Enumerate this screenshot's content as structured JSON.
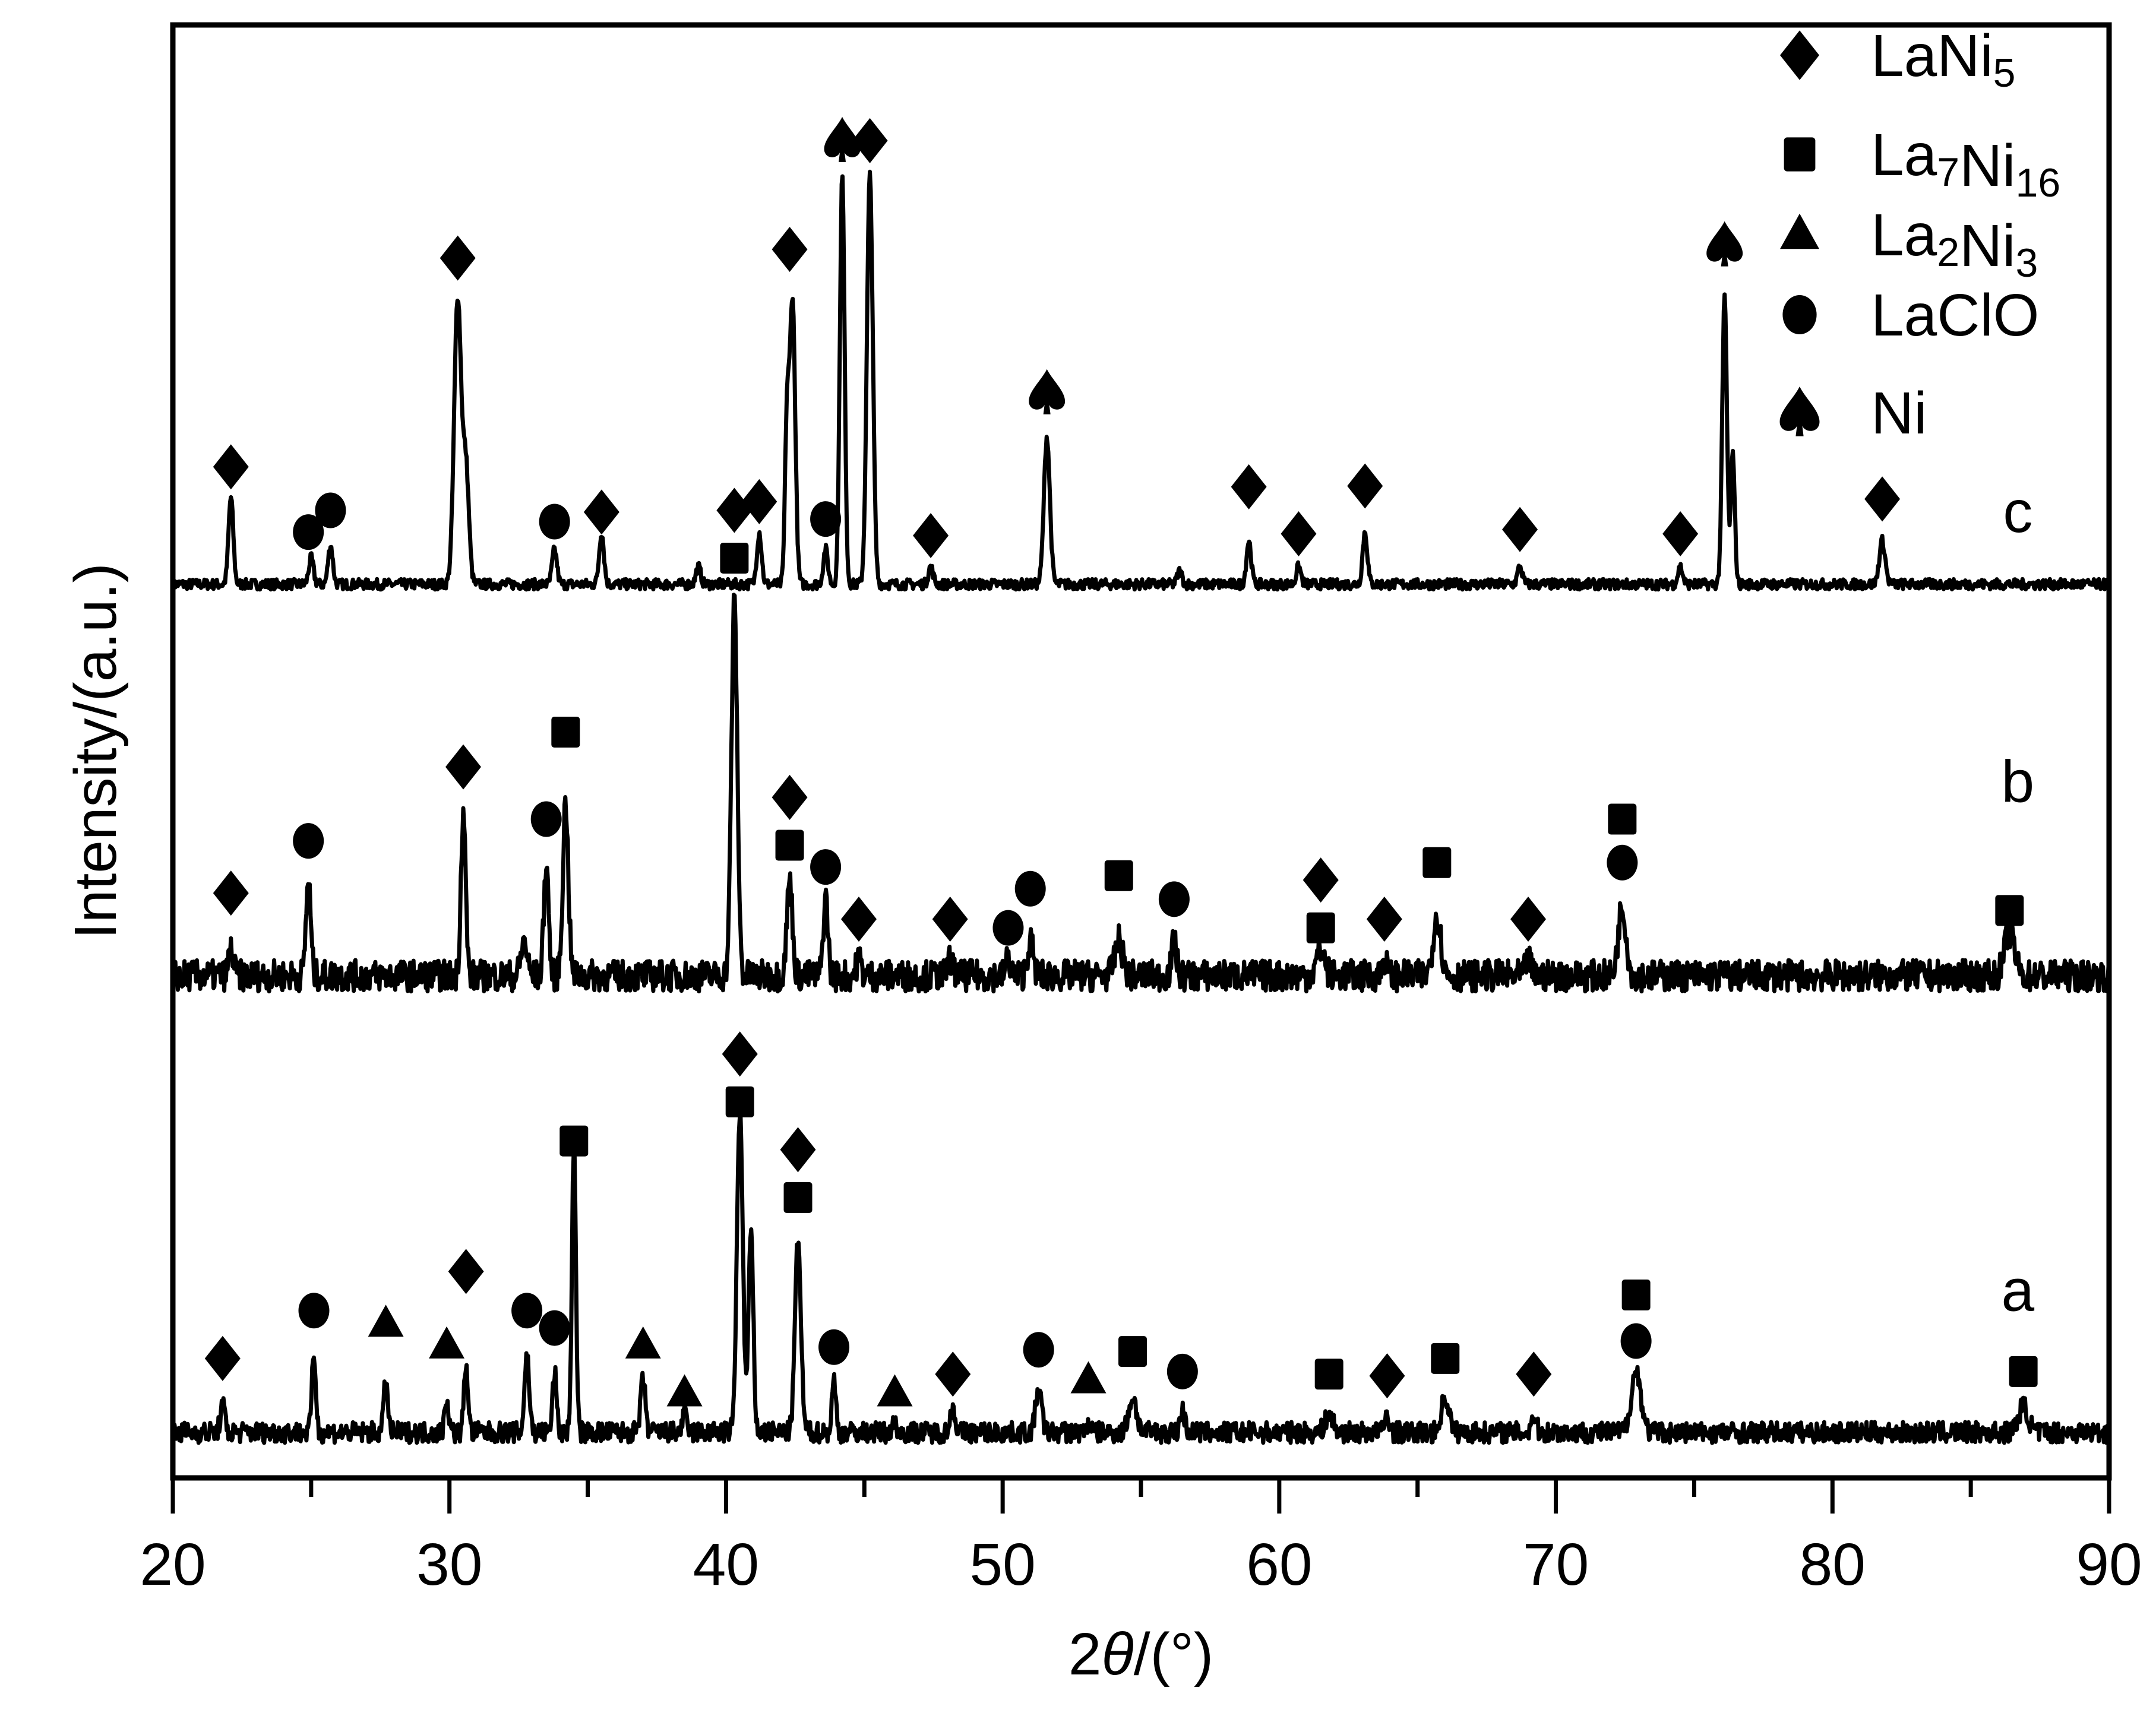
{
  "chart_data": {
    "type": "line",
    "title": "",
    "xlabel": "2θ/(°)",
    "xlabel_parts": {
      "prefix": "2",
      "theta": "θ",
      "suffix": "/(°)"
    },
    "ylabel": "Intensity/(a.u.)",
    "xlim": [
      20,
      90
    ],
    "x_ticks": [
      20,
      30,
      40,
      50,
      60,
      70,
      80,
      90
    ],
    "x_minor_ticks": [
      25,
      35,
      45,
      55,
      65,
      75,
      85
    ],
    "y_ticks": [],
    "grid": false,
    "legend_position": "top-right",
    "legend": [
      {
        "marker": "diamond",
        "label": "LaNi5",
        "base": "LaNi",
        "sub1": "",
        "sub2": "5",
        "mid": ""
      },
      {
        "marker": "square",
        "label": "La7Ni16",
        "base": "La",
        "sub1": "7",
        "mid": "Ni",
        "sub2": "16"
      },
      {
        "marker": "triangle",
        "label": "La2Ni3",
        "base": "La",
        "sub1": "2",
        "mid": "Ni",
        "sub2": "3"
      },
      {
        "marker": "circle",
        "label": "LaClO",
        "base": "LaClO",
        "sub1": "",
        "mid": "",
        "sub2": ""
      },
      {
        "marker": "spade",
        "label": "Ni",
        "base": "Ni",
        "sub1": "",
        "mid": "",
        "sub2": ""
      }
    ],
    "series": [
      {
        "name": "c",
        "baseline": 1.0,
        "noise": 0.006,
        "peaks": [
          {
            "x": 22.1,
            "h": 0.1,
            "w": 0.12
          },
          {
            "x": 25.0,
            "h": 0.03,
            "w": 0.12
          },
          {
            "x": 25.7,
            "h": 0.045,
            "w": 0.12
          },
          {
            "x": 30.3,
            "h": 0.33,
            "w": 0.18
          },
          {
            "x": 30.6,
            "h": 0.13,
            "w": 0.15
          },
          {
            "x": 33.8,
            "h": 0.04,
            "w": 0.12
          },
          {
            "x": 35.5,
            "h": 0.06,
            "w": 0.12
          },
          {
            "x": 39.0,
            "h": 0.02,
            "w": 0.12
          },
          {
            "x": 41.2,
            "h": 0.06,
            "w": 0.12
          },
          {
            "x": 42.2,
            "h": 0.18,
            "w": 0.1
          },
          {
            "x": 42.4,
            "h": 0.33,
            "w": 0.14
          },
          {
            "x": 43.6,
            "h": 0.04,
            "w": 0.12
          },
          {
            "x": 44.2,
            "h": 0.47,
            "w": 0.12
          },
          {
            "x": 45.2,
            "h": 0.47,
            "w": 0.15
          },
          {
            "x": 47.4,
            "h": 0.02,
            "w": 0.12
          },
          {
            "x": 51.6,
            "h": 0.17,
            "w": 0.15
          },
          {
            "x": 56.4,
            "h": 0.015,
            "w": 0.12
          },
          {
            "x": 58.9,
            "h": 0.05,
            "w": 0.12
          },
          {
            "x": 60.7,
            "h": 0.02,
            "w": 0.12
          },
          {
            "x": 63.1,
            "h": 0.06,
            "w": 0.12
          },
          {
            "x": 68.7,
            "h": 0.02,
            "w": 0.12
          },
          {
            "x": 74.5,
            "h": 0.02,
            "w": 0.12
          },
          {
            "x": 76.1,
            "h": 0.33,
            "w": 0.12
          },
          {
            "x": 76.4,
            "h": 0.15,
            "w": 0.1
          },
          {
            "x": 81.8,
            "h": 0.05,
            "w": 0.15
          }
        ],
        "markers": [
          {
            "x": 22.1,
            "type": "diamond",
            "y": 0.135
          },
          {
            "x": 24.9,
            "type": "circle",
            "y": 0.06
          },
          {
            "x": 25.7,
            "type": "circle",
            "y": 0.085
          },
          {
            "x": 30.3,
            "type": "diamond",
            "y": 0.375
          },
          {
            "x": 33.8,
            "type": "circle",
            "y": 0.072
          },
          {
            "x": 35.5,
            "type": "diamond",
            "y": 0.083
          },
          {
            "x": 41.2,
            "type": "diamond",
            "y": 0.095
          },
          {
            "x": 42.3,
            "type": "diamond",
            "y": 0.385
          },
          {
            "x": 43.6,
            "type": "circle",
            "y": 0.075
          },
          {
            "x": 44.2,
            "type": "spade",
            "y": 0.51
          },
          {
            "x": 45.2,
            "type": "diamond",
            "y": 0.51
          },
          {
            "x": 47.4,
            "type": "diamond",
            "y": 0.056
          },
          {
            "x": 51.6,
            "type": "spade",
            "y": 0.22
          },
          {
            "x": 58.9,
            "type": "diamond",
            "y": 0.112
          },
          {
            "x": 60.7,
            "type": "diamond",
            "y": 0.058
          },
          {
            "x": 63.1,
            "type": "diamond",
            "y": 0.113
          },
          {
            "x": 68.7,
            "type": "diamond",
            "y": 0.063
          },
          {
            "x": 74.5,
            "type": "diamond",
            "y": 0.058
          },
          {
            "x": 76.1,
            "type": "spade",
            "y": 0.39
          },
          {
            "x": 81.8,
            "type": "diamond",
            "y": 0.098
          }
        ],
        "label_x": 86.7,
        "label_y": 0.06
      },
      {
        "name": "b",
        "baseline": 0.55,
        "noise": 0.018,
        "peaks": [
          {
            "x": 22.1,
            "h": 0.03,
            "w": 0.12
          },
          {
            "x": 24.9,
            "h": 0.11,
            "w": 0.12
          },
          {
            "x": 30.5,
            "h": 0.19,
            "w": 0.12
          },
          {
            "x": 32.7,
            "h": 0.04,
            "w": 0.15
          },
          {
            "x": 33.5,
            "h": 0.13,
            "w": 0.12
          },
          {
            "x": 34.2,
            "h": 0.2,
            "w": 0.14
          },
          {
            "x": 40.3,
            "h": 0.43,
            "w": 0.15
          },
          {
            "x": 42.3,
            "h": 0.11,
            "w": 0.14
          },
          {
            "x": 43.6,
            "h": 0.09,
            "w": 0.12
          },
          {
            "x": 44.8,
            "h": 0.02,
            "w": 0.12
          },
          {
            "x": 48.1,
            "h": 0.02,
            "w": 0.12
          },
          {
            "x": 50.2,
            "h": 0.02,
            "w": 0.12
          },
          {
            "x": 51.0,
            "h": 0.04,
            "w": 0.15
          },
          {
            "x": 54.2,
            "h": 0.04,
            "w": 0.2
          },
          {
            "x": 56.2,
            "h": 0.04,
            "w": 0.12
          },
          {
            "x": 61.5,
            "h": 0.03,
            "w": 0.2
          },
          {
            "x": 63.8,
            "h": 0.02,
            "w": 0.12
          },
          {
            "x": 65.7,
            "h": 0.07,
            "w": 0.2
          },
          {
            "x": 69.0,
            "h": 0.02,
            "w": 0.12
          },
          {
            "x": 72.4,
            "h": 0.08,
            "w": 0.2
          },
          {
            "x": 86.4,
            "h": 0.05,
            "w": 0.25
          }
        ],
        "markers": [
          {
            "x": 22.1,
            "type": "diamond",
            "y": 0.095
          },
          {
            "x": 24.9,
            "type": "circle",
            "y": 0.155
          },
          {
            "x": 30.5,
            "type": "diamond",
            "y": 0.24
          },
          {
            "x": 33.5,
            "type": "circle",
            "y": 0.18
          },
          {
            "x": 34.2,
            "type": "square",
            "y": 0.28
          },
          {
            "x": 40.3,
            "type": "square",
            "y": 0.48
          },
          {
            "x": 40.3,
            "type": "diamond",
            "y": 0.535
          },
          {
            "x": 42.3,
            "type": "square",
            "y": 0.15
          },
          {
            "x": 42.3,
            "type": "diamond",
            "y": 0.205
          },
          {
            "x": 43.6,
            "type": "circle",
            "y": 0.125
          },
          {
            "x": 44.8,
            "type": "diamond",
            "y": 0.065
          },
          {
            "x": 48.1,
            "type": "diamond",
            "y": 0.065
          },
          {
            "x": 50.2,
            "type": "circle",
            "y": 0.055
          },
          {
            "x": 51.0,
            "type": "circle",
            "y": 0.1
          },
          {
            "x": 54.2,
            "type": "square",
            "y": 0.115
          },
          {
            "x": 56.2,
            "type": "circle",
            "y": 0.088
          },
          {
            "x": 61.5,
            "type": "square",
            "y": 0.055
          },
          {
            "x": 61.5,
            "type": "diamond",
            "y": 0.11
          },
          {
            "x": 63.8,
            "type": "diamond",
            "y": 0.065
          },
          {
            "x": 65.7,
            "type": "square",
            "y": 0.13
          },
          {
            "x": 69.0,
            "type": "diamond",
            "y": 0.065
          },
          {
            "x": 72.4,
            "type": "circle",
            "y": 0.13
          },
          {
            "x": 72.4,
            "type": "square",
            "y": 0.18
          },
          {
            "x": 86.4,
            "type": "square",
            "y": 0.075
          }
        ],
        "label_x": 86.7,
        "label_y": 0.2
      },
      {
        "name": "a",
        "baseline": 0.025,
        "noise": 0.012,
        "peaks": [
          {
            "x": 21.8,
            "h": 0.03,
            "w": 0.12
          },
          {
            "x": 25.1,
            "h": 0.09,
            "w": 0.1
          },
          {
            "x": 27.7,
            "h": 0.06,
            "w": 0.1
          },
          {
            "x": 29.9,
            "h": 0.04,
            "w": 0.1
          },
          {
            "x": 30.6,
            "h": 0.08,
            "w": 0.1
          },
          {
            "x": 32.8,
            "h": 0.09,
            "w": 0.12
          },
          {
            "x": 33.8,
            "h": 0.07,
            "w": 0.1
          },
          {
            "x": 34.5,
            "h": 0.33,
            "w": 0.1
          },
          {
            "x": 37.0,
            "h": 0.06,
            "w": 0.12
          },
          {
            "x": 38.5,
            "h": 0.02,
            "w": 0.12
          },
          {
            "x": 40.5,
            "h": 0.37,
            "w": 0.15
          },
          {
            "x": 40.9,
            "h": 0.23,
            "w": 0.12
          },
          {
            "x": 42.6,
            "h": 0.22,
            "w": 0.15
          },
          {
            "x": 43.9,
            "h": 0.06,
            "w": 0.1
          },
          {
            "x": 46.1,
            "h": 0.01,
            "w": 0.12
          },
          {
            "x": 48.2,
            "h": 0.03,
            "w": 0.12
          },
          {
            "x": 51.3,
            "h": 0.05,
            "w": 0.15
          },
          {
            "x": 53.1,
            "h": 0.01,
            "w": 0.12
          },
          {
            "x": 54.7,
            "h": 0.04,
            "w": 0.2
          },
          {
            "x": 56.5,
            "h": 0.025,
            "w": 0.12
          },
          {
            "x": 61.8,
            "h": 0.02,
            "w": 0.2
          },
          {
            "x": 63.9,
            "h": 0.02,
            "w": 0.12
          },
          {
            "x": 66.0,
            "h": 0.04,
            "w": 0.2
          },
          {
            "x": 69.2,
            "h": 0.02,
            "w": 0.12
          },
          {
            "x": 72.9,
            "h": 0.07,
            "w": 0.25
          },
          {
            "x": 86.9,
            "h": 0.03,
            "w": 0.25
          }
        ],
        "markers": [
          {
            "x": 21.8,
            "type": "diamond",
            "y": 0.085
          },
          {
            "x": 25.1,
            "type": "circle",
            "y": 0.14
          },
          {
            "x": 27.7,
            "type": "triangle",
            "y": 0.125
          },
          {
            "x": 29.9,
            "type": "triangle",
            "y": 0.1
          },
          {
            "x": 30.6,
            "type": "diamond",
            "y": 0.185
          },
          {
            "x": 32.8,
            "type": "circle",
            "y": 0.14
          },
          {
            "x": 33.8,
            "type": "circle",
            "y": 0.12
          },
          {
            "x": 34.5,
            "type": "square",
            "y": 0.335
          },
          {
            "x": 37.0,
            "type": "triangle",
            "y": 0.1
          },
          {
            "x": 38.5,
            "type": "triangle",
            "y": 0.045
          },
          {
            "x": 40.5,
            "type": "square",
            "y": 0.38
          },
          {
            "x": 40.5,
            "type": "diamond",
            "y": 0.435
          },
          {
            "x": 42.6,
            "type": "square",
            "y": 0.27
          },
          {
            "x": 42.6,
            "type": "diamond",
            "y": 0.325
          },
          {
            "x": 43.9,
            "type": "circle",
            "y": 0.098
          },
          {
            "x": 46.1,
            "type": "triangle",
            "y": 0.045
          },
          {
            "x": 48.2,
            "type": "diamond",
            "y": 0.067
          },
          {
            "x": 51.3,
            "type": "circle",
            "y": 0.095
          },
          {
            "x": 53.1,
            "type": "triangle",
            "y": 0.06
          },
          {
            "x": 54.7,
            "type": "square",
            "y": 0.093
          },
          {
            "x": 56.5,
            "type": "circle",
            "y": 0.07
          },
          {
            "x": 61.8,
            "type": "square",
            "y": 0.067
          },
          {
            "x": 63.9,
            "type": "diamond",
            "y": 0.065
          },
          {
            "x": 66.0,
            "type": "square",
            "y": 0.085
          },
          {
            "x": 69.2,
            "type": "diamond",
            "y": 0.067
          },
          {
            "x": 72.9,
            "type": "circle",
            "y": 0.105
          },
          {
            "x": 72.9,
            "type": "square",
            "y": 0.158
          },
          {
            "x": 86.9,
            "type": "square",
            "y": 0.07
          }
        ],
        "label_x": 86.7,
        "label_y": 0.14
      }
    ]
  }
}
